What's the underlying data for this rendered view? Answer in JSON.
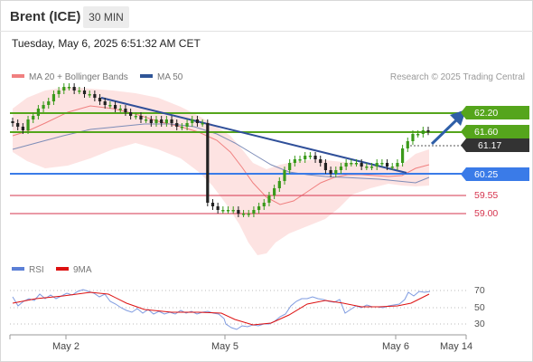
{
  "header": {
    "instrument": "Brent (ICE)",
    "timeframe": "30 MIN"
  },
  "datetime": "Tuesday, May 6, 2025 6:51:32 AM CET",
  "legend": {
    "ma20_label": "MA 20 + Bollinger Bands",
    "ma50_label": "MA 50",
    "ma20_color": "#f08080",
    "ma50_color": "#2f5597"
  },
  "credit": "Research © 2025 Trading Central",
  "levels": [
    {
      "value": "62.20",
      "kind": "resistance",
      "color": "#55a51c"
    },
    {
      "value": "61.60",
      "kind": "resistance",
      "color": "#55a51c"
    },
    {
      "value": "61.17",
      "kind": "last",
      "color": "#333333"
    },
    {
      "value": "60.25",
      "kind": "pivot",
      "color": "#3a7be8"
    },
    {
      "value": "59.55",
      "kind": "support",
      "color": "#d6344e"
    },
    {
      "value": "59.00",
      "kind": "support",
      "color": "#d6344e"
    }
  ],
  "rsi_legend": {
    "rsi_label": "RSI",
    "ma_label": "9MA",
    "rsi_color": "#5b7fd6",
    "ma_color": "#dd1111"
  },
  "rsi_levels": [
    "70",
    "50",
    "30"
  ],
  "x_axis": [
    "May 2",
    "May 5",
    "May 6",
    "May 14"
  ],
  "chart_data": {
    "type": "candlestick",
    "timeframe": "30 MIN",
    "ylim": [
      58.1,
      62.9
    ],
    "close_approx": [
      61.4,
      61.3,
      61.2,
      61.5,
      61.6,
      61.8,
      61.9,
      62.0,
      62.2,
      62.3,
      62.4,
      62.4,
      62.3,
      62.3,
      62.2,
      62.2,
      62.1,
      62.0,
      61.9,
      61.9,
      61.8,
      61.8,
      61.7,
      61.6,
      61.6,
      61.5,
      61.5,
      61.4,
      61.5,
      61.4,
      61.5,
      61.4,
      61.3,
      61.3,
      61.4,
      61.5,
      61.4,
      61.4,
      59.2,
      59.1,
      59.0,
      59.0,
      59.0,
      59.0,
      58.9,
      58.9,
      58.9,
      59.0,
      59.1,
      59.2,
      59.4,
      59.6,
      59.8,
      60.1,
      60.3,
      60.4,
      60.4,
      60.5,
      60.5,
      60.4,
      60.3,
      60.1,
      60.0,
      60.1,
      60.2,
      60.3,
      60.3,
      60.3,
      60.2,
      60.2,
      60.2,
      60.3,
      60.3,
      60.2,
      60.2,
      60.3,
      60.7,
      60.9,
      61.1,
      61.1,
      61.2,
      61.17
    ],
    "rsi": {
      "levels": [
        70,
        50,
        30
      ]
    },
    "levels": [
      62.2,
      61.6,
      61.17,
      60.25,
      59.55,
      59.0
    ]
  }
}
